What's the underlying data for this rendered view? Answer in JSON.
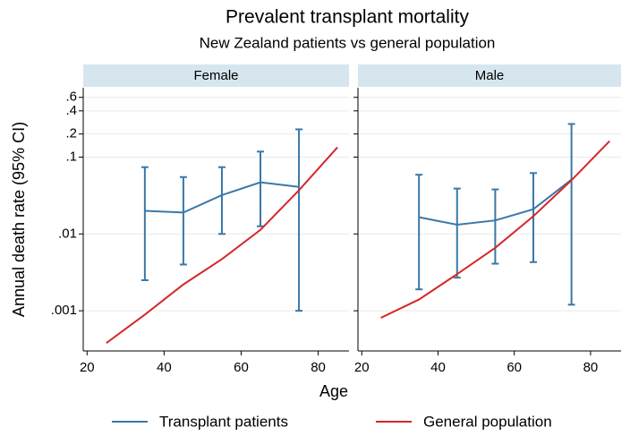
{
  "chart_data": {
    "type": "line",
    "title": "Prevalent transplant mortality",
    "subtitle": "New Zealand patients vs general population",
    "x_label": "Age",
    "y_label": "Annual death rate (95% CI)",
    "log_y": true,
    "grid": true,
    "legend": "bottom",
    "xlim": [
      19,
      88
    ],
    "xticks": [
      20,
      40,
      60,
      80
    ],
    "ylim": [
      0.0003,
      0.8
    ],
    "yticks": [
      {
        "value": 0.001,
        "label": ".001"
      },
      {
        "value": 0.01,
        "label": ".01"
      },
      {
        "value": 0.1,
        "label": ".1"
      },
      {
        "value": 0.2,
        "label": ".2"
      },
      {
        "value": 0.4,
        "label": ".4"
      },
      {
        "value": 0.6,
        "label": ".6"
      }
    ],
    "series": [
      {
        "name": "Transplant patients",
        "color": "#3a78a8"
      },
      {
        "name": "General population",
        "color": "#d62728"
      }
    ],
    "panels": [
      {
        "name": "Female",
        "series": [
          {
            "x": [
              35,
              45,
              55,
              65,
              75
            ],
            "values": [
              0.02,
              0.019,
              0.032,
              0.047,
              0.041
            ],
            "lower": [
              0.0025,
              0.004,
              0.01,
              0.0126,
              0.001
            ],
            "upper": [
              0.074,
              0.055,
              0.074,
              0.118,
              0.23
            ]
          },
          {
            "x": [
              25,
              35,
              45,
              55,
              65,
              75,
              85
            ],
            "values": [
              0.00038,
              0.00089,
              0.0022,
              0.0047,
              0.0113,
              0.037,
              0.134
            ]
          }
        ]
      },
      {
        "name": "Male",
        "series": [
          {
            "x": [
              35,
              45,
              55,
              65,
              75
            ],
            "values": [
              0.0165,
              0.0132,
              0.015,
              0.021,
              0.051
            ],
            "lower": [
              0.0019,
              0.0027,
              0.0041,
              0.0043,
              0.0012
            ],
            "upper": [
              0.059,
              0.039,
              0.038,
              0.062,
              0.27
            ]
          },
          {
            "x": [
              25,
              35,
              45,
              55,
              65,
              75,
              85
            ],
            "values": [
              0.00081,
              0.0014,
              0.003,
              0.0066,
              0.017,
              0.05,
              0.162
            ]
          }
        ]
      }
    ]
  }
}
